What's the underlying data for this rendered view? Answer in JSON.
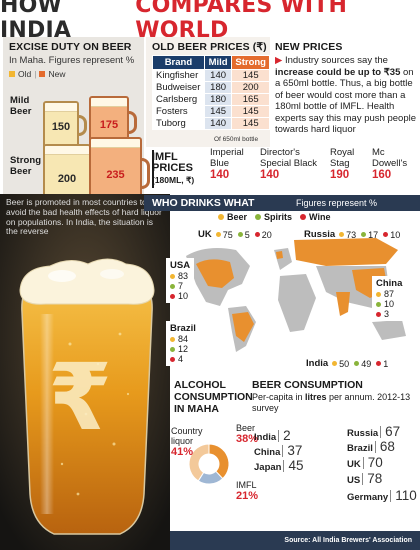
{
  "title": {
    "part1": "HOW INDIA",
    "part2": "COMPARES WITH WORLD"
  },
  "colors": {
    "red": "#d7262e",
    "navy": "#1b3d6a",
    "orange": "#e46b2d",
    "beer": "#f2b632",
    "spirits": "#8ab43b",
    "wine": "#d7262e"
  },
  "excise": {
    "heading": "EXCISE DUTY ON BEER",
    "subtitle": "In Maha. Figures represent %",
    "legend_old": "Old",
    "legend_new": "New",
    "mild_label": "Mild Beer",
    "strong_label": "Strong Beer"
  },
  "new_prices": {
    "heading": "NEW PRICES",
    "text_a": "Industry sources say the ",
    "text_bold": "increase could be up to ₹35",
    "text_b": " on a 650ml bottle. Thus, a big bottle of beer would cost more than a 180ml bottle of IMFL. Health experts say this may push people towards hard liquor"
  },
  "imfl": {
    "heading": "IMFL PRICES",
    "unit": "(180ML, ₹)"
  },
  "who": {
    "heading": "WHO DRINKS WHAT",
    "subtitle": "Figures represent %",
    "legend": [
      "Beer",
      "Spirits",
      "Wine"
    ]
  },
  "beer_intro": "Beer is promoted in most countries to avoid the bad health effects of hard liquor on populations. In India, the situation is the reverse",
  "alcohol": {
    "heading": "ALCOHOL CONSUMPTION IN MAHA"
  },
  "consumption": {
    "heading": "BEER CONSUMPTION",
    "subtitle_a": "Per-capita in ",
    "subtitle_bold": "litres",
    "subtitle_b": " per annum. 2012-13 survey"
  },
  "source": "Source: All India Brewers' Association",
  "chart_data": [
    {
      "type": "bar",
      "title": "EXCISE DUTY ON BEER",
      "subtitle": "In Maha. Figures represent %",
      "categories": [
        "Mild Beer",
        "Strong Beer"
      ],
      "series": [
        {
          "name": "Old",
          "values": [
            150,
            200
          ]
        },
        {
          "name": "New",
          "values": [
            175,
            235
          ]
        }
      ]
    },
    {
      "type": "table",
      "title": "OLD BEER PRICES (₹)",
      "columns": [
        "Brand",
        "Mild",
        "Strong"
      ],
      "rows": [
        [
          "Kingfisher",
          "140",
          "145"
        ],
        [
          "Budweiser",
          "180",
          "200"
        ],
        [
          "Carlsberg",
          "180",
          "165"
        ],
        [
          "Fosters",
          "145",
          "145"
        ],
        [
          "Tuborg",
          "140",
          "145"
        ]
      ],
      "footnote": "Of 650ml bottle"
    },
    {
      "type": "table",
      "title": "IMFL PRICES",
      "unit": "(180ML, ₹)",
      "items": [
        {
          "name": "Imperial Blue",
          "price": 140
        },
        {
          "name": "Director's Special Black",
          "price": 140
        },
        {
          "name": "Royal Stag",
          "price": 190
        },
        {
          "name": "Mc Dowell's",
          "price": 160
        }
      ]
    },
    {
      "type": "table",
      "title": "WHO DRINKS WHAT",
      "subtitle": "Figures represent %",
      "columns": [
        "Beer",
        "Spirits",
        "Wine"
      ],
      "rows": [
        {
          "country": "UK",
          "values": [
            75,
            5,
            20
          ]
        },
        {
          "country": "Russia",
          "values": [
            73,
            17,
            10
          ]
        },
        {
          "country": "USA",
          "values": [
            83,
            7,
            10
          ]
        },
        {
          "country": "China",
          "values": [
            87,
            10,
            3
          ]
        },
        {
          "country": "Brazil",
          "values": [
            84,
            12,
            4
          ]
        },
        {
          "country": "India",
          "values": [
            50,
            49,
            1
          ]
        }
      ]
    },
    {
      "type": "pie",
      "title": "ALCOHOL CONSUMPTION IN MAHA",
      "categories": [
        "Beer",
        "IMFL",
        "Country liquor"
      ],
      "values": [
        38,
        21,
        41
      ]
    },
    {
      "type": "table",
      "title": "BEER CONSUMPTION",
      "subtitle": "Per-capita in litres per annum. 2012-13 survey",
      "items": [
        {
          "country": "India",
          "value": 2
        },
        {
          "country": "China",
          "value": 37
        },
        {
          "country": "Japan",
          "value": 45
        },
        {
          "country": "Russia",
          "value": 67
        },
        {
          "country": "Brazil",
          "value": 68
        },
        {
          "country": "UK",
          "value": 70
        },
        {
          "country": "US",
          "value": 78
        },
        {
          "country": "Germany",
          "value": 110
        }
      ]
    }
  ]
}
